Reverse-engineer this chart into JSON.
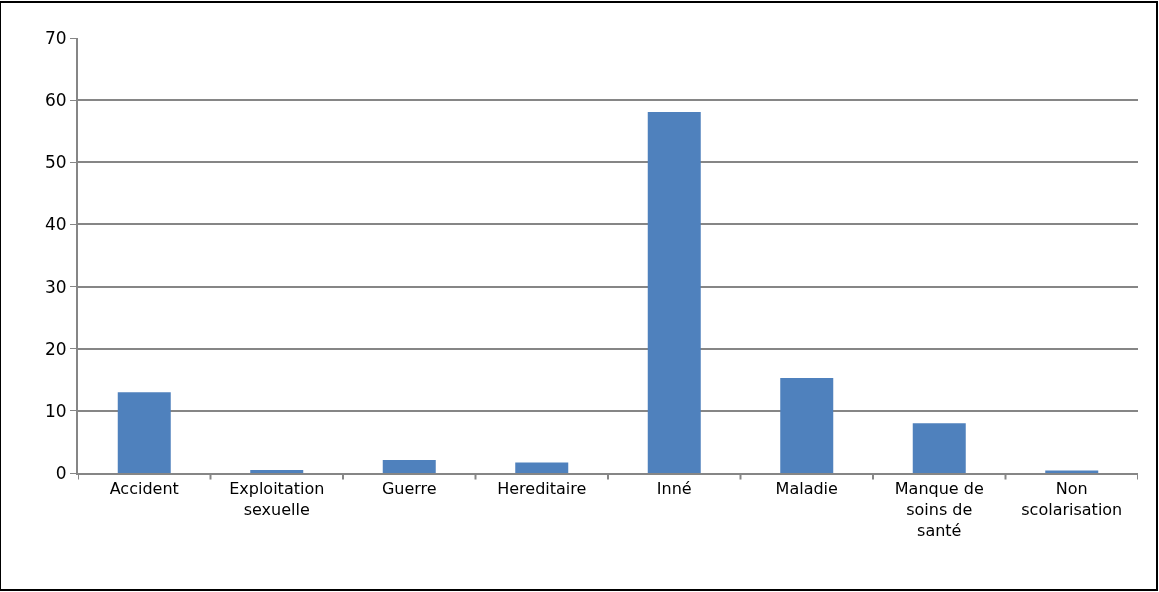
{
  "chart_data": {
    "type": "bar",
    "categories": [
      "Accident",
      "Exploitation sexuelle",
      "Guerre",
      "Hereditaire",
      "Inné",
      "Maladie",
      "Manque de soins de santé",
      "Non scolarisation"
    ],
    "values": [
      13.0,
      0.5,
      2.1,
      1.7,
      58.1,
      15.3,
      8.0,
      0.4
    ],
    "color": "#4f81bd",
    "ylim": [
      0,
      70
    ],
    "yticks": [
      0,
      10,
      20,
      30,
      40,
      50,
      60,
      70
    ],
    "grid": "y",
    "legend": false
  }
}
